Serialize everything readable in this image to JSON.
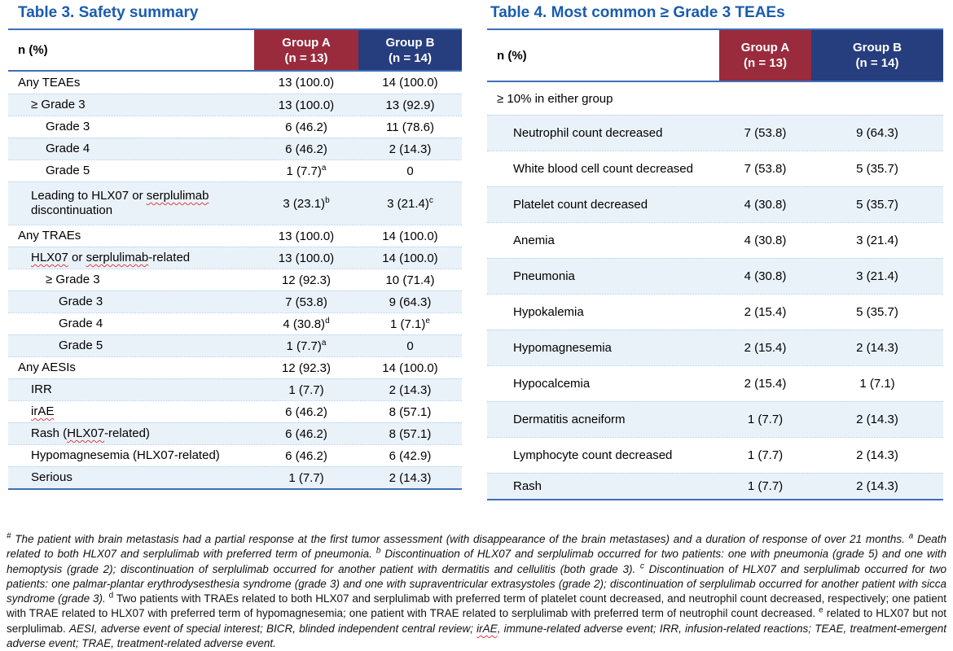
{
  "colors": {
    "title_blue": "#1a5cad",
    "group_a_maroon": "#9a2b3c",
    "group_b_navy": "#263d7e",
    "rule_blue": "#3e6fb6",
    "band_blue": "#eaf2f9",
    "squiggle_red": "#e24040"
  },
  "table3": {
    "title": "Table 3. Safety summary",
    "header": {
      "label": "n (%)",
      "group_a": {
        "line1": "Group A",
        "line2": "(n = 13)"
      },
      "group_b": {
        "line1": "Group B",
        "line2": "(n = 14)"
      }
    },
    "rows": [
      {
        "label": "Any TEAEs",
        "indent": 0,
        "a": "13 (100.0)",
        "b": "14 (100.0)"
      },
      {
        "label": "≥ Grade 3",
        "indent": 1,
        "a": "13 (100.0)",
        "b": "13 (92.9)"
      },
      {
        "label": "Grade 3",
        "indent": 2,
        "a": "6 (46.2)",
        "b": "11 (78.6)"
      },
      {
        "label": "Grade 4",
        "indent": 2,
        "a": "6 (46.2)",
        "b": "2 (14.3)"
      },
      {
        "label": "Grade 5",
        "indent": 2,
        "a": "1 (7.7)",
        "a_sup": "a",
        "b": "0"
      },
      {
        "label": "Leading to HLX07 or serplulimab discontinuation",
        "indent": 1,
        "tall": true,
        "misspelled": [
          "serplulimab"
        ],
        "a": "3 (23.1)",
        "a_sup": "b",
        "b": "3 (21.4)",
        "b_sup": "c"
      },
      {
        "label": "Any TRAEs",
        "indent": 0,
        "a": "13 (100.0)",
        "b": "14 (100.0)"
      },
      {
        "label": "HLX07 or serplulimab-related",
        "indent": 1,
        "misspelled": [
          "HLX07",
          "serplulimab"
        ],
        "a": "13 (100.0)",
        "b": "14 (100.0)"
      },
      {
        "label": "≥ Grade 3",
        "indent": 2,
        "a": "12 (92.3)",
        "b": "10 (71.4)"
      },
      {
        "label": "Grade 3",
        "indent": 3,
        "a": "7 (53.8)",
        "b": "9 (64.3)"
      },
      {
        "label": "Grade 4",
        "indent": 3,
        "a": "4 (30.8)",
        "a_sup": "d",
        "b": "1 (7.1)",
        "b_sup": "e"
      },
      {
        "label": "Grade 5",
        "indent": 3,
        "a": "1 (7.7)",
        "a_sup": "a",
        "b": "0"
      },
      {
        "label": "Any AESIs",
        "indent": 0,
        "a": "12 (92.3)",
        "b": "14 (100.0)"
      },
      {
        "label": "IRR",
        "indent": 1,
        "a": "1 (7.7)",
        "b": "2 (14.3)"
      },
      {
        "label": "irAE",
        "indent": 1,
        "misspelled": [
          "irAE"
        ],
        "a": "6 (46.2)",
        "b": "8 (57.1)"
      },
      {
        "label": "Rash (HLX07-related)",
        "indent": 1,
        "misspelled": [
          "HLX07"
        ],
        "a": "6 (46.2)",
        "b": "8 (57.1)"
      },
      {
        "label": "Hypomagnesemia (HLX07-related)",
        "indent": 1,
        "a": "6 (46.2)",
        "b": "6 (42.9)"
      },
      {
        "label": "Serious",
        "indent": 1,
        "a": "1 (7.7)",
        "b": "2 (14.3)"
      }
    ]
  },
  "table4": {
    "title": "Table 4. Most common ≥ Grade 3 TEAEs",
    "header": {
      "label": "n (%)",
      "group_a": {
        "line1": "Group A",
        "line2": "(n = 13)"
      },
      "group_b": {
        "line1": "Group B",
        "line2": "(n = 14)"
      }
    },
    "section_label": "≥ 10% in either group",
    "rows": [
      {
        "label": "Neutrophil count decreased",
        "a": "7 (53.8)",
        "b": "9 (64.3)"
      },
      {
        "label": "White blood cell count decreased",
        "a": "7 (53.8)",
        "b": "5 (35.7)"
      },
      {
        "label": "Platelet count decreased",
        "a": "4 (30.8)",
        "b": "5 (35.7)"
      },
      {
        "label": "Anemia",
        "a": "4 (30.8)",
        "b": "3 (21.4)"
      },
      {
        "label": "Pneumonia",
        "a": "4 (30.8)",
        "b": "3 (21.4)"
      },
      {
        "label": "Hypokalemia",
        "a": "2 (15.4)",
        "b": "5 (35.7)"
      },
      {
        "label": "Hypomagnesemia",
        "a": "2 (15.4)",
        "b": "2 (14.3)"
      },
      {
        "label": "Hypocalcemia",
        "a": "2 (15.4)",
        "b": "1 (7.1)"
      },
      {
        "label": "Dermatitis acneiform",
        "a": "1 (7.7)",
        "b": "2 (14.3)"
      },
      {
        "label": "Lymphocyte count decreased",
        "a": "1 (7.7)",
        "b": "2 (14.3)"
      },
      {
        "label": "Rash",
        "a": "1 (7.7)",
        "b": "2 (14.3)"
      }
    ]
  },
  "footnote": {
    "html": "<i><sup>#</sup> The patient with brain metastasis had a partial response at the first tumor assessment (with disappearance of the brain metastases) and a duration of response of over 21 months. <sup>a</sup> Death related to both HLX07 and serplulimab with preferred term of pneumonia. <sup>b</sup> Discontinuation of HLX07 and serplulimab occurred for two patients: one with pneumonia (grade 5) and one with hemoptysis (grade 2); discontinuation of serplulimab occurred for another patient with dermatitis and cellulitis (both grade 3). <sup>c</sup> Discontinuation of HLX07 and serplulimab occurred for two patients: one palmar-plantar erythrodysesthesia syndrome (grade 3) and one with supraventricular extrasystoles (grade 2); discontinuation of serplulimab occurred for another patient with sicca syndrome (grade 3).</i> <sup>d</sup> Two patients with TRAEs related to both HLX07 and serplulimab with preferred term of platelet count decreased, and neutrophil count decreased, respectively; one patient with TRAE related to HLX07 with preferred term of hypomagnesemia; one patient with TRAE related to serplulimab with preferred term of neutrophil count decreased. <sup>e</sup> related to HLX07 but not serplulimab. <i>AESI, adverse event of special interest; BICR, blinded independent central review; <span class='sq'>irAE</span>, immune-related adverse event; IRR, infusion-related reactions; TEAE, treatment-emergent adverse event; TRAE, treatment-related adverse event.</i>"
  }
}
